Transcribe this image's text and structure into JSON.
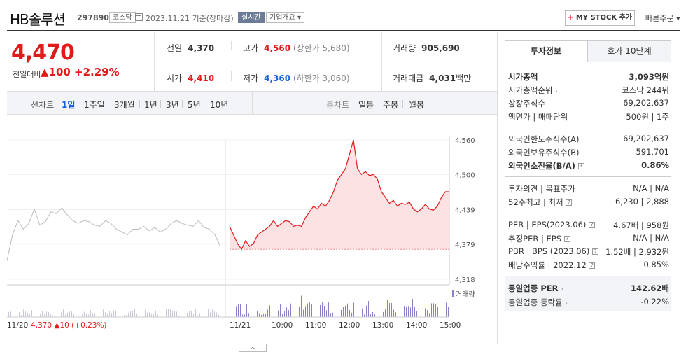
{
  "header": {
    "name": "HB솔루션",
    "code": "297890",
    "market": "코스닥",
    "date": "2023.11.21  기준(장마감)",
    "realtime": "실시간",
    "summary": "기업개요 ▾",
    "mystock": "MY STOCK 추가",
    "mystock_plus": "+",
    "quick_order": "빠른주문 ▾"
  },
  "price": {
    "current": "4,470",
    "change_label": "전일대비",
    "change_amount": "▲100",
    "change_pct": "+2.29%"
  },
  "stats": {
    "prev_label": "전일",
    "prev_value": "4,370",
    "high_label": "고가",
    "high_value": "4,560",
    "high_limit": "(상한가 5,680)",
    "volume_label": "거래량",
    "volume_value": "905,690",
    "open_label": "시가",
    "open_value": "4,410",
    "low_label": "저가",
    "low_value": "4,360",
    "low_limit": "(하한가 3,060)",
    "amount_label": "거래대금",
    "amount_value": "4,031",
    "amount_unit": "백만"
  },
  "chart_tabs": {
    "line_label": "선차트",
    "periods": [
      "1일",
      "1주일",
      "3개월",
      "1년",
      "3년",
      "5년",
      "10년"
    ],
    "active_period": "1일",
    "candle_label": "봉차트",
    "candle_periods": [
      "일봉",
      "주봉",
      "월봉"
    ]
  },
  "chart_data": {
    "type": "line",
    "y_ticks": [
      "4,560",
      "4,500",
      "4,439",
      "4,379",
      "4,318"
    ],
    "ylim": [
      4318,
      4560
    ],
    "reference_price": 4370,
    "x_labels": [
      "11/20",
      "11/21",
      "10:00",
      "11:00",
      "12:00",
      "13:00",
      "14:00",
      "15:00"
    ],
    "prev_day_summary": "4,370 ▲10 (+0.23%)",
    "prev_day_price": "4,370",
    "prev_day_change": "▲10 (+0.23%)",
    "volume_legend": "거래량",
    "series": [
      {
        "values": [
          4350,
          4395,
          4420,
          4405,
          4415,
          4440,
          4412,
          4418,
          4435,
          4432,
          4442,
          4430,
          4420,
          4415,
          4420,
          4418,
          4412,
          4410,
          4420,
          4415,
          4405,
          4400,
          4395,
          4405,
          4405,
          4410,
          4402,
          4408,
          4400,
          4405,
          4415,
          4420,
          4415,
          4412,
          4410,
          4420,
          4408,
          4405,
          4395,
          4375
        ]
      },
      {
        "values": [
          4410,
          4395,
          4380,
          4370,
          4385,
          4375,
          4380,
          4395,
          4400,
          4405,
          4410,
          4420,
          4410,
          4415,
          4420,
          4418,
          4410,
          4412,
          4410,
          4425,
          4435,
          4445,
          4440,
          4450,
          4445,
          4455,
          4470,
          4490,
          4500,
          4510,
          4535,
          4560,
          4510,
          4500,
          4505,
          4498,
          4500,
          4492,
          4470,
          4460,
          4450,
          4455,
          4445,
          4450,
          4448,
          4452,
          4440,
          4435,
          4440,
          4448,
          4440,
          4438,
          4445,
          4460,
          4470,
          4470
        ]
      }
    ]
  },
  "invest_panel": {
    "tab_invest": "투자정보",
    "tab_orderbook": "호가 10단계",
    "market_cap": {
      "label": "시가총액",
      "value": "3,093억원"
    },
    "market_cap_rank": {
      "label": "시가총액순위",
      "value": "코스닥 244위"
    },
    "shares": {
      "label": "상장주식수",
      "value": "69,202,637"
    },
    "face_value": {
      "label": "액면가 | 매매단위",
      "value": "500원 | 1주"
    },
    "foreign_limit": {
      "label": "외국인한도주식수(A)",
      "value": "69,202,637"
    },
    "foreign_hold": {
      "label": "외국인보유주식수(B)",
      "value": "591,701"
    },
    "foreign_ratio": {
      "label": "외국인소진율(B/A)",
      "value": "0.86%"
    },
    "opinion": {
      "label": "투자의견 | 목표주가",
      "value": "N/A | N/A"
    },
    "week52": {
      "label": "52주최고 | 최저",
      "value": "6,230 | 2,888"
    },
    "per_eps": {
      "label": "PER | EPS(2023.06)",
      "value": "4.67배 | 958원"
    },
    "est_per": {
      "label": "추정PER | EPS",
      "value": "N/A | N/A"
    },
    "pbr_bps": {
      "label": "PBR | BPS (2023.06)",
      "value": "1.52배 | 2,932원"
    },
    "dividend": {
      "label": "배당수익률 | 2022.12",
      "value": "0.85%"
    },
    "sector_per": {
      "label": "동일업종 PER",
      "value": "142.62배"
    },
    "sector_rate": {
      "label": "동일업종 등락률",
      "value": "-0.22%"
    }
  },
  "colors": {
    "up": "#e21a1a",
    "down": "#1a5fe2",
    "accent": "#6d7c96"
  }
}
